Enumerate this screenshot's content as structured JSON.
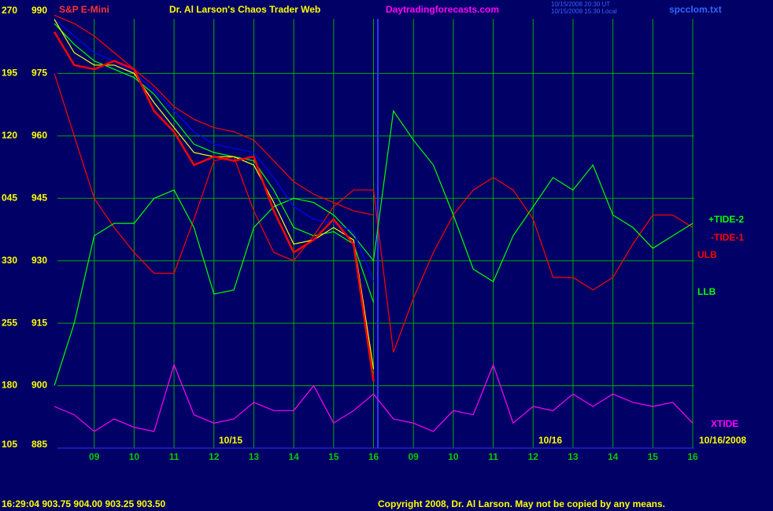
{
  "chart_data": {
    "type": "line",
    "title": "Dr. Al Larson's Chaos Trader Web",
    "symbol": "S&P E-Mini",
    "website": "Daytradingforecasts.com",
    "timestamps": [
      "10/15/2008 20:30 UT",
      "10/15/2008 15:30 Local"
    ],
    "file": "spcclom.txt",
    "date_labels": [
      "10/15",
      "10/16",
      "10/16/2008"
    ],
    "status": "16:29:04  903.75  904.00  903.25  903.50",
    "copyright": "Copyright 2008, Dr. Al Larson. May not be copied by any means.",
    "categories": [
      null,
      null,
      "09",
      null,
      "10",
      null,
      "11",
      null,
      "12",
      null,
      "13",
      null,
      "14",
      null,
      "15",
      null,
      "16",
      null,
      "09",
      null,
      "10",
      null,
      "11",
      null,
      "12",
      null,
      "13",
      null,
      "14",
      null,
      "15",
      null,
      "16"
    ],
    "ylim": [
      885,
      990
    ],
    "yticks": [
      885,
      900,
      915,
      930,
      945,
      960,
      975,
      990
    ],
    "y2ticks": [
      105,
      180,
      255,
      330,
      {
        "value": 45,
        "label": "045"
      },
      120,
      195,
      270
    ],
    "grid": true,
    "series": [
      {
        "name": "ULB",
        "color": "#ff0000",
        "values": [
          989,
          987,
          984,
          980,
          976,
          972,
          967,
          964,
          962,
          961,
          959,
          954,
          949,
          946,
          944,
          942,
          941,
          null,
          null,
          null,
          null,
          null,
          null,
          null,
          null,
          null,
          null,
          null,
          null,
          null,
          null,
          null,
          null
        ]
      },
      {
        "name": "LLB",
        "color": "#00ff00",
        "values": [
          987,
          982,
          978,
          976,
          974,
          970,
          964,
          958,
          956,
          955,
          954,
          947,
          938,
          936,
          937,
          934,
          920,
          null,
          null,
          null,
          null,
          null,
          null,
          null,
          null,
          null,
          null,
          null,
          null,
          null,
          null,
          null,
          null
        ]
      },
      {
        "name": "-TIDE-1",
        "color": "#ff0000",
        "values": [
          975,
          960,
          945,
          938,
          932,
          927,
          927,
          940,
          954,
          955,
          942,
          932,
          930,
          936,
          943,
          947,
          947,
          908,
          921,
          932,
          941,
          947,
          950,
          947,
          940,
          926,
          926,
          923,
          926,
          934,
          941,
          941,
          938
        ]
      },
      {
        "name": "+TIDE-2",
        "color": "#00ff00",
        "values": [
          900,
          915,
          936,
          939,
          939,
          945,
          947,
          938,
          922,
          923,
          938,
          943,
          945,
          944,
          941,
          936,
          930,
          966,
          959,
          953,
          941,
          928,
          925,
          936,
          943,
          950,
          947,
          953,
          941,
          938,
          933,
          936,
          939
        ]
      },
      {
        "name": "XTIDE",
        "color": "#ff00ff",
        "values": [
          895,
          893,
          889,
          892,
          890,
          889,
          905,
          893,
          891,
          892,
          896,
          894,
          894,
          900,
          891,
          894,
          898,
          892,
          891,
          889,
          894,
          893,
          905,
          891,
          895,
          894,
          898,
          895,
          898,
          896,
          895,
          896,
          891
        ]
      },
      {
        "color": "#0000ff",
        "values": [
          988,
          984,
          980,
          978,
          975,
          971,
          966,
          961,
          958,
          957,
          956,
          950,
          943,
          940,
          939,
          937,
          925,
          null,
          null,
          null,
          null,
          null,
          null,
          null,
          null,
          null,
          null,
          null,
          null,
          null,
          null,
          null,
          null
        ]
      },
      {
        "color": "#ffff00",
        "values": [
          988,
          980,
          977,
          977,
          975,
          968,
          962,
          956,
          955,
          955,
          953,
          944,
          934,
          935,
          938,
          935,
          904,
          null,
          null,
          null,
          null,
          null,
          null,
          null,
          null,
          null,
          null,
          null,
          null,
          null,
          null,
          null,
          null
        ]
      },
      {
        "color": "#ff0000",
        "values": [
          985,
          977,
          976,
          978,
          976,
          966,
          961,
          953,
          955,
          954,
          955,
          942,
          932,
          935,
          940,
          934,
          901,
          null,
          null,
          null,
          null,
          null,
          null,
          null,
          null,
          null,
          null,
          null,
          null,
          null,
          null,
          null,
          null
        ]
      }
    ]
  }
}
